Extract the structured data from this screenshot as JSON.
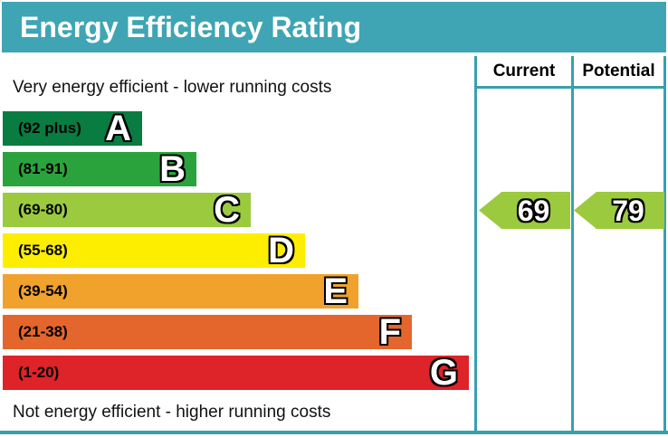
{
  "title": "Energy Efficiency Rating",
  "table": {
    "current_label": "Current",
    "potential_label": "Potential"
  },
  "notes": {
    "top": "Very energy efficient - lower running costs",
    "bottom": "Not energy efficient - higher running costs"
  },
  "bands": [
    {
      "letter": "A",
      "range": "(92 plus)",
      "color": "#087c41"
    },
    {
      "letter": "B",
      "range": "(81-91)",
      "color": "#2ba33c"
    },
    {
      "letter": "C",
      "range": "(69-80)",
      "color": "#9cca3e"
    },
    {
      "letter": "D",
      "range": "(55-68)",
      "color": "#fdee00"
    },
    {
      "letter": "E",
      "range": "(39-54)",
      "color": "#f0a22d"
    },
    {
      "letter": "F",
      "range": "(21-38)",
      "color": "#e4662c"
    },
    {
      "letter": "G",
      "range": "(1-20)",
      "color": "#de2329"
    }
  ],
  "ratings": {
    "current": {
      "value": "69",
      "color": "#9cca3e"
    },
    "potential": {
      "value": "79",
      "color": "#9cca3e"
    }
  },
  "colors": {
    "header_bg": "#3fa5b4",
    "border": "#3a9fae",
    "title_text": "#ffffff"
  },
  "chart_data": {
    "type": "bar",
    "title": "Energy Efficiency Rating",
    "categories": [
      "A",
      "B",
      "C",
      "D",
      "E",
      "F",
      "G"
    ],
    "band_ranges": [
      "92 plus",
      "81-91",
      "69-80",
      "55-68",
      "39-54",
      "21-38",
      "1-20"
    ],
    "band_colors": [
      "#087c41",
      "#2ba33c",
      "#9cca3e",
      "#fdee00",
      "#f0a22d",
      "#e4662c",
      "#de2329"
    ],
    "bar_lengths_relative": [
      1,
      2,
      3,
      4,
      5,
      6,
      7
    ],
    "value_range": [
      1,
      100
    ],
    "series": [
      {
        "name": "Current",
        "value": 69,
        "band": "C",
        "color": "#9cca3e"
      },
      {
        "name": "Potential",
        "value": 79,
        "band": "C",
        "color": "#9cca3e"
      }
    ],
    "annotations": [
      "Very energy efficient - lower running costs",
      "Not energy efficient - higher running costs"
    ],
    "legend_position": "top-right-columns",
    "grid": false
  }
}
